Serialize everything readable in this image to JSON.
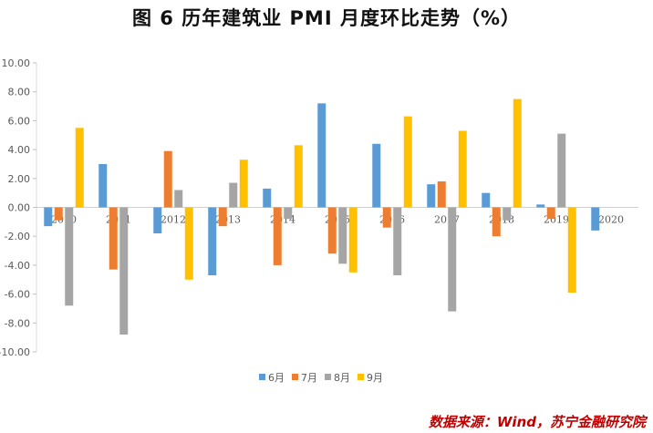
{
  "source": "数据来源：Wind，苏宁金融研究院",
  "chart_data": {
    "type": "bar",
    "title": "图 6   历年建筑业 PMI 月度环比走势（%）",
    "xlabel": "",
    "ylabel": "",
    "ylim": [
      -10,
      10
    ],
    "yticks": [
      "10.00",
      "8.00",
      "6.00",
      "4.00",
      "2.00",
      "0.00",
      "-2.00",
      "-4.00",
      "-6.00",
      "-8.00",
      "-10.00"
    ],
    "categories": [
      "2010",
      "2011",
      "2012",
      "2013",
      "2014",
      "2015",
      "2016",
      "2017",
      "2018",
      "2019",
      "2020"
    ],
    "legend_position": "bottom",
    "grid": false,
    "series": [
      {
        "name": "6月",
        "color": "#5B9BD5",
        "values": [
          -1.3,
          3.0,
          -1.8,
          -4.7,
          1.3,
          7.2,
          4.4,
          1.6,
          1.0,
          0.2,
          -1.6
        ]
      },
      {
        "name": "7月",
        "color": "#ED7D31",
        "values": [
          -0.9,
          -4.3,
          3.9,
          -1.3,
          -4.0,
          -3.2,
          -1.4,
          1.8,
          -2.0,
          -0.8,
          null
        ]
      },
      {
        "name": "8月",
        "color": "#A5A5A5",
        "values": [
          -6.8,
          -8.8,
          1.2,
          1.7,
          -0.8,
          -3.9,
          -4.7,
          -7.2,
          -0.9,
          5.1,
          null
        ]
      },
      {
        "name": "9月",
        "color": "#FFC000",
        "values": [
          5.5,
          null,
          -5.0,
          3.3,
          4.3,
          -4.5,
          6.3,
          5.3,
          7.5,
          -5.9,
          null
        ]
      }
    ]
  }
}
